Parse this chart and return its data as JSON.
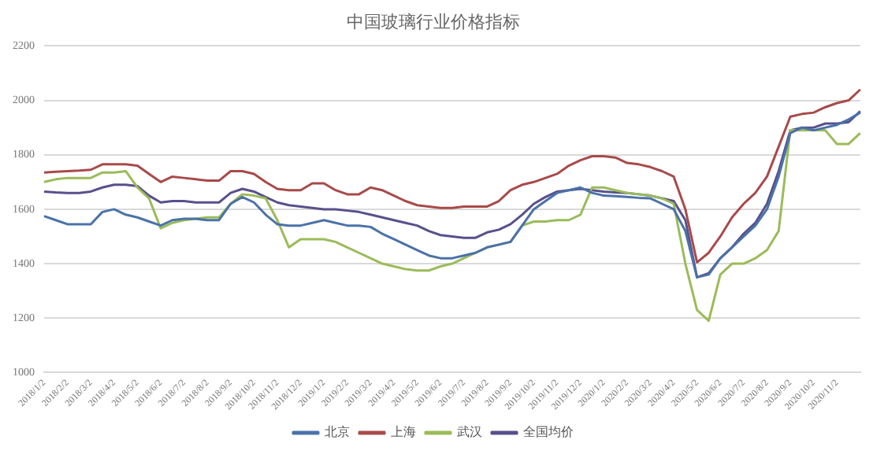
{
  "chart_data": {
    "type": "line",
    "title": "中国玻璃行业价格指标",
    "categories": [
      "2018/1/2",
      null,
      "2018/2/2",
      null,
      "2018/3/2",
      null,
      "2018/4/2",
      null,
      "2018/5/2",
      null,
      "2018/6/2",
      null,
      "2018/7/2",
      null,
      "2018/8/2",
      null,
      "2018/9/2",
      null,
      "2018/10/2",
      null,
      "2018/11/2",
      null,
      "2018/12/2",
      null,
      "2019/1/2",
      null,
      "2019/2/2",
      null,
      "2019/3/2",
      null,
      "2019/4/2",
      null,
      "2019/5/2",
      null,
      "2019/6/2",
      null,
      "2019/7/2",
      null,
      "2019/8/2",
      null,
      "2019/9/2",
      null,
      "2019/10/2",
      null,
      "2019/11/2",
      null,
      "2019/12/2",
      null,
      "2020/1/2",
      null,
      "2020/2/2",
      null,
      "2020/3/2",
      null,
      "2020/4/2",
      null,
      "2020/5/2",
      null,
      "2020/6/2",
      null,
      "2020/7/2",
      null,
      "2020/8/2",
      null,
      "2020/9/2",
      null,
      "2020/10/2",
      null,
      "2020/11/2",
      null,
      null
    ],
    "series": [
      {
        "name": "北京",
        "color": "#4a72a8",
        "values": [
          1575,
          1560,
          1545,
          1545,
          1545,
          1590,
          1600,
          1580,
          1570,
          1555,
          1540,
          1560,
          1565,
          1565,
          1560,
          1560,
          1620,
          1645,
          1625,
          1580,
          1545,
          1540,
          1540,
          1550,
          1560,
          1550,
          1540,
          1540,
          1535,
          1510,
          1490,
          1470,
          1450,
          1430,
          1420,
          1420,
          1430,
          1440,
          1460,
          1470,
          1480,
          1540,
          1600,
          1630,
          1660,
          1670,
          1680,
          1660,
          1650,
          1648,
          1645,
          1642,
          1640,
          1620,
          1600,
          1520,
          1350,
          1360,
          1420,
          1460,
          1500,
          1540,
          1600,
          1720,
          1880,
          1900,
          1890,
          1900,
          1910,
          1930,
          1955
        ]
      },
      {
        "name": "上海",
        "color": "#a84a4a",
        "values": [
          1735,
          1738,
          1740,
          1742,
          1745,
          1765,
          1765,
          1765,
          1760,
          1730,
          1700,
          1720,
          1715,
          1710,
          1705,
          1705,
          1740,
          1740,
          1730,
          1700,
          1675,
          1670,
          1670,
          1695,
          1695,
          1670,
          1655,
          1655,
          1680,
          1670,
          1650,
          1630,
          1615,
          1610,
          1605,
          1605,
          1610,
          1610,
          1610,
          1630,
          1670,
          1690,
          1700,
          1715,
          1730,
          1760,
          1780,
          1795,
          1795,
          1790,
          1770,
          1765,
          1755,
          1740,
          1720,
          1600,
          1405,
          1440,
          1500,
          1570,
          1620,
          1660,
          1720,
          1830,
          1940,
          1950,
          1955,
          1975,
          1990,
          2000,
          2040
        ]
      },
      {
        "name": "武汉",
        "color": "#9bbb59",
        "values": [
          1700,
          1710,
          1715,
          1715,
          1715,
          1735,
          1735,
          1740,
          1680,
          1640,
          1530,
          1550,
          1560,
          1565,
          1570,
          1570,
          1620,
          1655,
          1650,
          1640,
          1560,
          1460,
          1490,
          1490,
          1490,
          1480,
          1460,
          1440,
          1420,
          1400,
          1390,
          1380,
          1375,
          1375,
          1390,
          1400,
          1420,
          1440,
          1460,
          1470,
          1480,
          1540,
          1555,
          1555,
          1560,
          1560,
          1580,
          1680,
          1680,
          1670,
          1660,
          1655,
          1650,
          1640,
          1620,
          1400,
          1230,
          1190,
          1360,
          1400,
          1400,
          1420,
          1450,
          1520,
          1890,
          1890,
          1890,
          1890,
          1840,
          1840,
          1880
        ]
      },
      {
        "name": "全国均价",
        "color": "#57508c",
        "values": [
          1665,
          1662,
          1660,
          1660,
          1665,
          1680,
          1690,
          1690,
          1685,
          1650,
          1625,
          1630,
          1630,
          1625,
          1625,
          1625,
          1660,
          1675,
          1665,
          1645,
          1625,
          1615,
          1610,
          1605,
          1600,
          1600,
          1595,
          1590,
          1580,
          1570,
          1560,
          1550,
          1540,
          1520,
          1505,
          1500,
          1495,
          1495,
          1515,
          1525,
          1545,
          1580,
          1620,
          1645,
          1665,
          1670,
          1675,
          1670,
          1665,
          1662,
          1660,
          1655,
          1650,
          1640,
          1630,
          1560,
          1350,
          1365,
          1420,
          1460,
          1510,
          1550,
          1620,
          1740,
          1890,
          1900,
          1900,
          1915,
          1915,
          1920,
          1960
        ]
      }
    ],
    "ylim": [
      1000,
      2200
    ],
    "yticks": [
      1000,
      1200,
      1400,
      1600,
      1800,
      2000,
      2200
    ],
    "grid": "y",
    "legend": "bottom",
    "marker": "none",
    "line_style": "solid"
  }
}
